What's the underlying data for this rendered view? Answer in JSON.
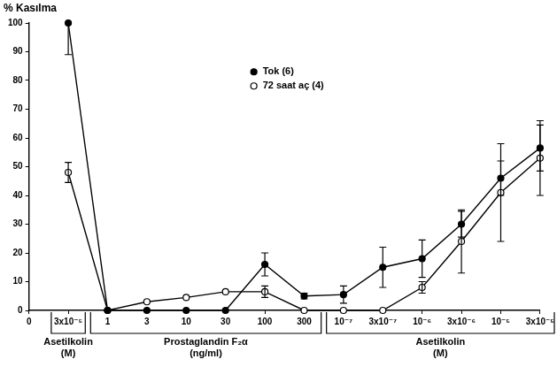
{
  "chart_data": {
    "type": "line",
    "y_label": "% Kasılma",
    "categories": [
      "0",
      "3x10⁻⁵",
      "1",
      "3",
      "10",
      "30",
      "100",
      "300",
      "10⁻⁷",
      "3x10⁻⁷",
      "10⁻⁶",
      "3x10⁻⁶",
      "10⁻⁵",
      "3x10⁻⁵"
    ],
    "category_groups": [
      {
        "name": "Asetilkolin",
        "unit": "(M)",
        "categories": [
          "3x10⁻⁵"
        ]
      },
      {
        "name": "Prostaglandin F₂α",
        "unit": "(ng/ml)",
        "categories": [
          "1",
          "3",
          "10",
          "30",
          "100",
          "300"
        ]
      },
      {
        "name": "Asetilkolin",
        "unit": "(M)",
        "categories": [
          "10⁻⁷",
          "3x10⁻⁷",
          "10⁻⁶",
          "3x10⁻⁶",
          "10⁻⁵",
          "3x10⁻⁵"
        ]
      }
    ],
    "series": [
      {
        "name": "Tok (6)",
        "color": "#000000",
        "marker": "filled_circle",
        "values": [
          null,
          100,
          0,
          0,
          0,
          0,
          16,
          5,
          5.5,
          15,
          18,
          30,
          46,
          56.5
        ],
        "errors": [
          null,
          11,
          null,
          null,
          null,
          null,
          4,
          1,
          3,
          7,
          6.5,
          4.5,
          6,
          8
        ]
      },
      {
        "name": "72 saat aç (4)",
        "color": "#000000",
        "marker": "open_circle",
        "values": [
          null,
          48,
          0,
          3,
          4.5,
          6.5,
          6.5,
          0,
          0,
          0,
          8,
          24,
          41,
          53
        ],
        "errors": [
          null,
          3.5,
          null,
          null,
          null,
          null,
          2,
          null,
          null,
          null,
          2,
          11,
          17,
          13
        ]
      }
    ],
    "ylim": [
      0,
      100
    ],
    "yticks": [
      0,
      10,
      20,
      30,
      40,
      50,
      60,
      70,
      80,
      90,
      100
    ],
    "grid": false,
    "legend": "upper center"
  }
}
